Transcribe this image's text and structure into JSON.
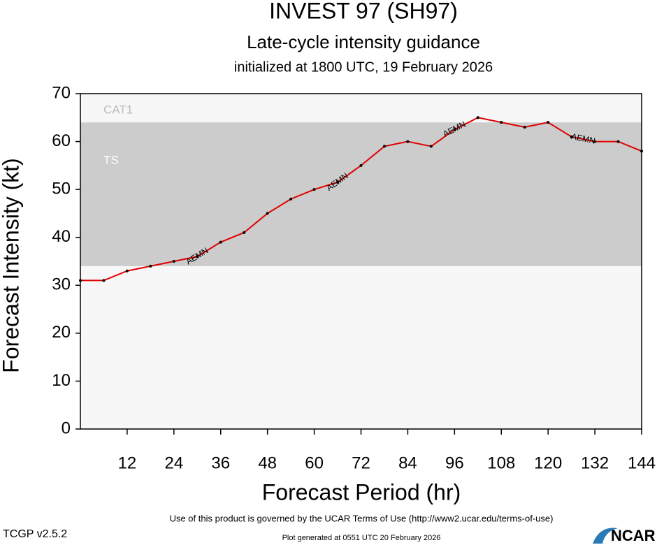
{
  "chart_data": {
    "type": "line",
    "title": "INVEST 97 (SH97)",
    "subtitle": "Late-cycle intensity guidance",
    "initialized": "initialized at 1800 UTC, 19 February 2026",
    "x_label": "Forecast Period (hr)",
    "y_label": "Forecast Intensity (kt)",
    "x": [
      0,
      6,
      12,
      18,
      24,
      30,
      36,
      42,
      48,
      54,
      60,
      66,
      72,
      78,
      84,
      90,
      96,
      102,
      108,
      114,
      120,
      126,
      132,
      138,
      144
    ],
    "series": [
      {
        "name": "AEMN",
        "color": "#e00000",
        "values": [
          31,
          31,
          33,
          34,
          35,
          36,
          39,
          41,
          45,
          48,
          50,
          51.5,
          55,
          59,
          60,
          59,
          62.5,
          65,
          64,
          63,
          64,
          61,
          60,
          60,
          58
        ]
      }
    ],
    "bands": [
      {
        "label": "TS",
        "from": 34,
        "to": 64,
        "color": "#cccccc"
      },
      {
        "label": "CAT1",
        "from": 64,
        "color": "#f7f7f7"
      }
    ],
    "xlim": [
      0,
      144
    ],
    "ylim": [
      0,
      70
    ],
    "xticks": [
      12,
      24,
      36,
      48,
      60,
      72,
      84,
      96,
      108,
      120,
      132,
      144
    ],
    "yticks": [
      0,
      10,
      20,
      30,
      40,
      50,
      60,
      70
    ],
    "footer": {
      "terms": "Use of this product is governed by the UCAR Terms of Use (http://www2.ucar.edu/terms-of-use)",
      "version": "TCGP v2.5.2",
      "generated": "Plot generated at 0551 UTC   20 February 2026",
      "logo": "NCAR"
    }
  }
}
